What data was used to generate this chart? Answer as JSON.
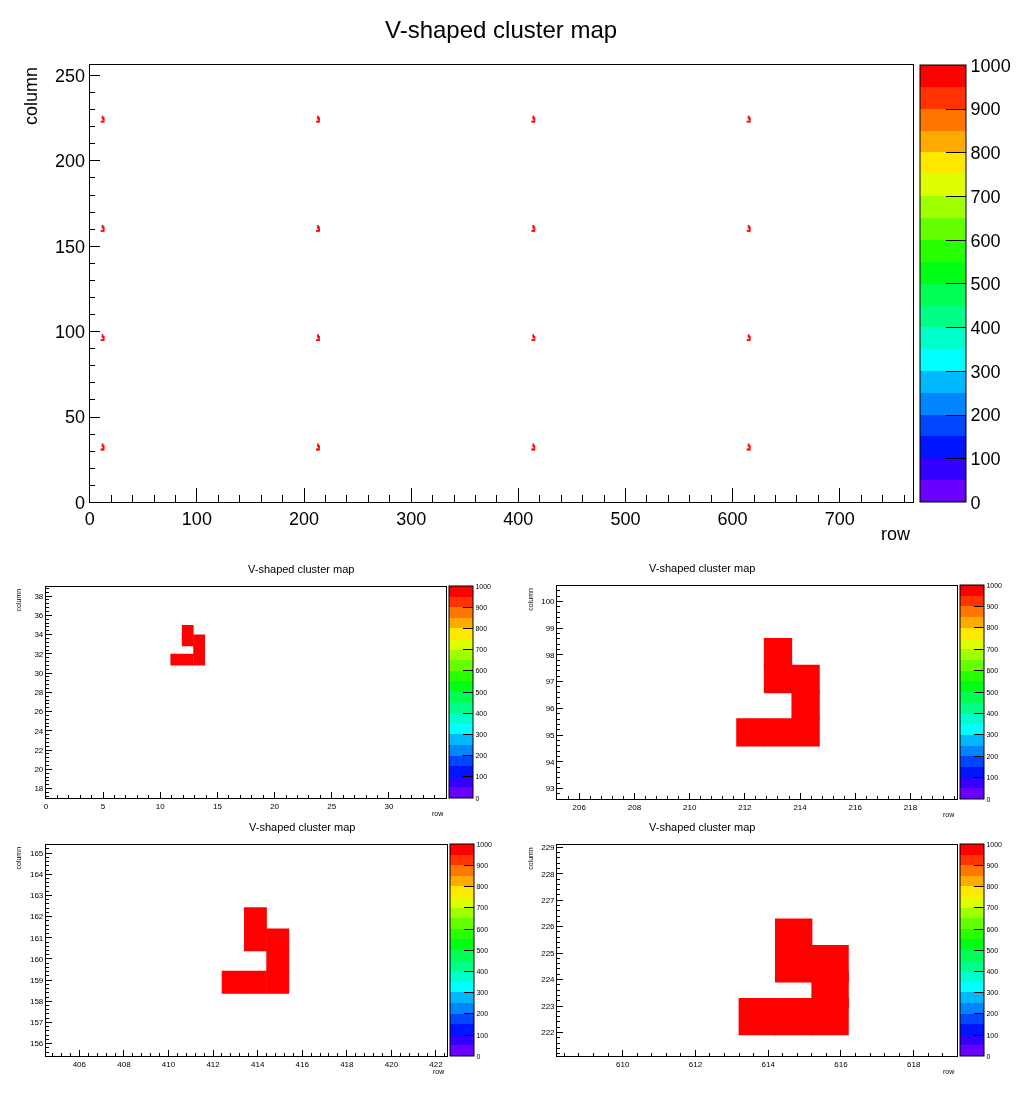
{
  "chart_data": [
    {
      "type": "scatter",
      "title": "V-shaped cluster map",
      "xlabel": "row",
      "ylabel": "column",
      "marker": "square",
      "x": [
        11,
        12,
        13,
        13,
        12,
        13,
        12,
        212,
        213,
        214,
        214,
        213,
        214,
        213,
        413,
        414,
        415,
        415,
        414,
        415,
        414,
        614,
        615,
        616,
        616,
        615,
        616,
        615,
        11,
        12,
        13,
        13,
        12,
        13,
        12,
        212,
        213,
        214,
        214,
        213,
        214,
        213,
        413,
        414,
        415,
        415,
        414,
        415,
        414,
        614,
        615,
        616,
        616,
        615,
        616,
        615,
        11,
        12,
        13,
        13,
        12,
        13,
        12,
        212,
        213,
        214,
        214,
        213,
        214,
        213,
        413,
        414,
        415,
        415,
        414,
        415,
        414,
        614,
        615,
        616,
        616,
        615,
        616,
        615,
        11,
        12,
        13,
        13,
        12,
        13,
        12,
        212,
        213,
        214,
        214,
        213,
        214,
        213,
        413,
        414,
        415,
        415,
        414,
        415,
        414,
        614,
        615,
        616,
        616,
        615,
        616,
        615
      ],
      "values": [
        31,
        31,
        31,
        32,
        33,
        33,
        34,
        31,
        31,
        31,
        32,
        33,
        33,
        34,
        31,
        31,
        31,
        32,
        33,
        33,
        34,
        31,
        31,
        31,
        32,
        33,
        33,
        34,
        95,
        95,
        95,
        96,
        97,
        97,
        98,
        95,
        95,
        95,
        96,
        97,
        97,
        98,
        95,
        95,
        95,
        96,
        97,
        97,
        98,
        95,
        95,
        95,
        96,
        97,
        97,
        98,
        159,
        159,
        159,
        160,
        161,
        161,
        162,
        159,
        159,
        159,
        160,
        161,
        161,
        162,
        159,
        159,
        159,
        160,
        161,
        161,
        162,
        159,
        159,
        159,
        160,
        161,
        161,
        162,
        223,
        223,
        223,
        224,
        225,
        225,
        226,
        223,
        223,
        223,
        224,
        225,
        225,
        226,
        223,
        223,
        223,
        224,
        225,
        225,
        226,
        223,
        223,
        223,
        224,
        225,
        225,
        226
      ],
      "cvalues": [
        1000,
        1000,
        1000,
        1000,
        1000,
        1000,
        1000,
        1000,
        1000,
        1000,
        1000,
        1000,
        1000,
        1000,
        1000,
        1000,
        1000,
        1000,
        1000,
        1000,
        1000,
        1000,
        1000,
        1000,
        1000,
        1000,
        1000,
        1000,
        1000,
        1000,
        1000,
        1000,
        1000,
        1000,
        1000,
        1000,
        1000,
        1000,
        1000,
        1000,
        1000,
        1000,
        1000,
        1000,
        1000,
        1000,
        1000,
        1000,
        1000,
        1000,
        1000,
        1000,
        1000,
        1000,
        1000,
        1000,
        1000,
        1000,
        1000,
        1000,
        1000,
        1000,
        1000,
        1000,
        1000,
        1000,
        1000,
        1000,
        1000,
        1000,
        1000,
        1000,
        1000,
        1000,
        1000,
        1000,
        1000,
        1000,
        1000,
        1000,
        1000,
        1000,
        1000,
        1000,
        1000,
        1000,
        1000,
        1000,
        1000,
        1000,
        1000,
        1000,
        1000,
        1000,
        1000,
        1000,
        1000,
        1000,
        1000,
        1000,
        1000,
        1000,
        1000,
        1000,
        1000,
        1000,
        1000,
        1000,
        1000,
        1000,
        1000,
        1000
      ],
      "xlim": [
        0,
        768
      ],
      "ylim": [
        0,
        256
      ],
      "xticks": [
        0,
        100,
        200,
        300,
        400,
        500,
        600,
        700
      ],
      "yticks": [
        0,
        50,
        100,
        150,
        200,
        250
      ],
      "clim": [
        0,
        1000
      ],
      "cticks": [
        0,
        100,
        200,
        300,
        400,
        500,
        600,
        700,
        800,
        900,
        1000
      ]
    },
    {
      "type": "scatter",
      "title": "V-shaped cluster map",
      "xlabel": "row",
      "ylabel": "column",
      "marker": "square",
      "x": [
        11.4,
        12.4,
        13.4,
        13.4,
        12.4,
        13.4,
        12.4
      ],
      "values": [
        31.4,
        31.4,
        31.4,
        32.4,
        33.4,
        33.4,
        34.4
      ],
      "cvalues": [
        1000,
        1000,
        1000,
        1000,
        1000,
        1000,
        1000
      ],
      "xlim": [
        0,
        35
      ],
      "ylim": [
        17,
        39
      ],
      "xticks": [
        0,
        5,
        10,
        15,
        20,
        25,
        30
      ],
      "yticks": [
        18,
        20,
        22,
        24,
        26,
        28,
        30,
        32,
        34,
        36,
        38
      ],
      "clim": [
        0,
        1000
      ],
      "cticks": [
        0,
        100,
        200,
        300,
        400,
        500,
        600,
        700,
        800,
        900,
        1000
      ]
    },
    {
      "type": "scatter",
      "title": "V-shaped cluster map",
      "xlabel": "row",
      "ylabel": "column",
      "marker": "square",
      "x": [
        212.2,
        213.2,
        214.2,
        214.2,
        213.2,
        214.2,
        213.2
      ],
      "values": [
        95.1,
        95.1,
        95.1,
        96.1,
        97.1,
        97.1,
        98.1
      ],
      "cvalues": [
        1000,
        1000,
        1000,
        1000,
        1000,
        1000,
        1000
      ],
      "xlim": [
        205.2,
        219.7
      ],
      "ylim": [
        92.6,
        100.6
      ],
      "xticks": [
        206,
        208,
        210,
        212,
        214,
        216,
        218
      ],
      "yticks": [
        93,
        94,
        95,
        96,
        97,
        98,
        99,
        100
      ],
      "clim": [
        0,
        1000
      ],
      "cticks": [
        0,
        100,
        200,
        300,
        400,
        500,
        600,
        700,
        800,
        900,
        1000
      ]
    },
    {
      "type": "scatter",
      "title": "V-shaped cluster map",
      "xlabel": "row",
      "ylabel": "column",
      "marker": "square",
      "x": [
        412.9,
        413.9,
        414.9,
        414.9,
        413.9,
        414.9,
        413.9
      ],
      "values": [
        158.9,
        158.9,
        158.9,
        159.9,
        160.9,
        160.9,
        161.9
      ],
      "cvalues": [
        1000,
        1000,
        1000,
        1000,
        1000,
        1000,
        1000
      ],
      "xlim": [
        404.5,
        422.5
      ],
      "ylim": [
        155.4,
        165.4
      ],
      "xticks": [
        406,
        408,
        410,
        412,
        414,
        416,
        418,
        420,
        422
      ],
      "yticks": [
        156,
        157,
        158,
        159,
        160,
        161,
        162,
        163,
        164,
        165
      ],
      "clim": [
        0,
        1000
      ],
      "cticks": [
        0,
        100,
        200,
        300,
        400,
        500,
        600,
        700,
        800,
        900,
        1000
      ]
    },
    {
      "type": "scatter",
      "title": "V-shaped cluster map",
      "xlabel": "row",
      "ylabel": "column",
      "marker": "square",
      "x": [
        613.7,
        614.7,
        615.7,
        615.7,
        614.7,
        615.7,
        614.7
      ],
      "values": [
        222.6,
        222.6,
        222.6,
        223.6,
        224.6,
        224.6,
        225.6
      ],
      "cvalues": [
        1000,
        1000,
        1000,
        1000,
        1000,
        1000,
        1000
      ],
      "xlim": [
        608.2,
        619.2
      ],
      "ylim": [
        221.1,
        229.1
      ],
      "xticks": [
        610,
        612,
        614,
        616,
        618
      ],
      "yticks": [
        222,
        223,
        224,
        225,
        226,
        227,
        228,
        229
      ],
      "clim": [
        0,
        1000
      ],
      "cticks": [
        0,
        100,
        200,
        300,
        400,
        500,
        600,
        700,
        800,
        900,
        1000
      ]
    }
  ]
}
